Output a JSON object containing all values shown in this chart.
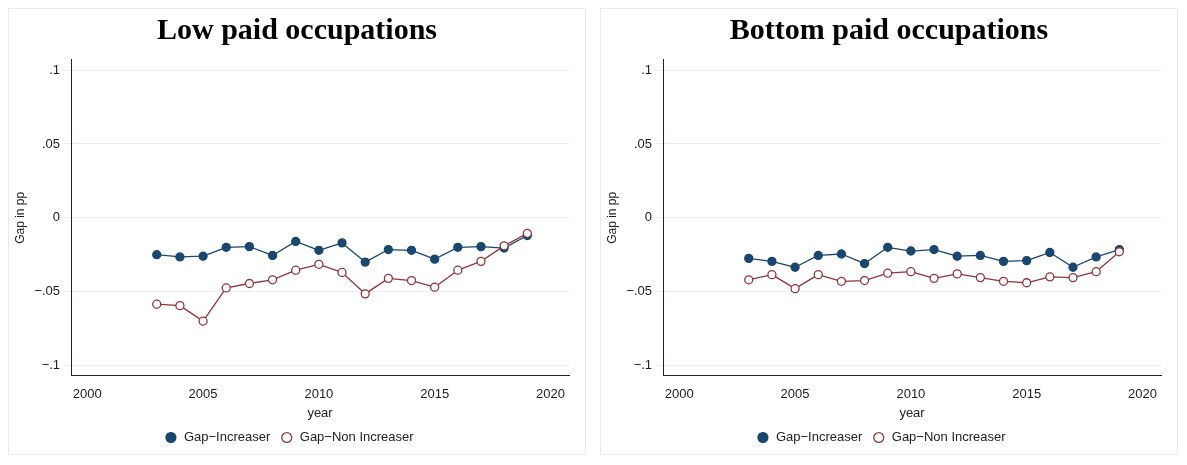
{
  "chart_data": [
    {
      "type": "line",
      "title": "Low paid occupations",
      "xlabel": "year",
      "ylabel": "Gap in pp",
      "x": [
        2003,
        2004,
        2005,
        2006,
        2007,
        2008,
        2009,
        2010,
        2011,
        2012,
        2013,
        2014,
        2015,
        2016,
        2017,
        2018,
        2019
      ],
      "series": [
        {
          "name": "Gap−Increaser",
          "color": "#1a476f",
          "values": [
            -0.025,
            -0.0265,
            -0.026,
            -0.02,
            -0.0195,
            -0.0255,
            -0.016,
            -0.022,
            -0.017,
            -0.03,
            -0.0215,
            -0.022,
            -0.028,
            -0.02,
            -0.0195,
            -0.0205,
            -0.012
          ]
        },
        {
          "name": "Gap−Non Increaser",
          "color": "#90353b",
          "values": [
            -0.0585,
            -0.0595,
            -0.07,
            -0.0475,
            -0.0445,
            -0.042,
            -0.0355,
            -0.0315,
            -0.037,
            -0.0515,
            -0.041,
            -0.0425,
            -0.047,
            -0.0355,
            -0.0295,
            -0.019,
            -0.0105
          ]
        }
      ],
      "xlim": [
        1999.3,
        2020.8
      ],
      "xticks": [
        2000,
        2005,
        2010,
        2015,
        2020
      ],
      "ylim": [
        -0.107,
        0.107
      ],
      "yticks": [
        {
          "value": -0.1,
          "label": "−.1"
        },
        {
          "value": -0.05,
          "label": "−.05"
        },
        0,
        {
          "value": 0.05,
          "label": ".05"
        },
        {
          "value": 0.1,
          "label": ".1"
        }
      ],
      "grid": "y",
      "legend": "bottom",
      "marker": "circle",
      "line_style": "solid"
    },
    {
      "type": "line",
      "title": "Bottom paid occupations",
      "xlabel": "year",
      "ylabel": "Gap in pp",
      "x": [
        2003,
        2004,
        2005,
        2006,
        2007,
        2008,
        2009,
        2010,
        2011,
        2012,
        2013,
        2014,
        2015,
        2016,
        2017,
        2018,
        2019
      ],
      "series": [
        {
          "name": "Gap−Increaser",
          "color": "#1a476f",
          "values": [
            -0.0275,
            -0.0295,
            -0.0335,
            -0.0255,
            -0.0245,
            -0.031,
            -0.02,
            -0.0225,
            -0.0215,
            -0.026,
            -0.0255,
            -0.0295,
            -0.029,
            -0.0235,
            -0.0335,
            -0.0265,
            -0.0215
          ]
        },
        {
          "name": "Gap−Non Increaser",
          "color": "#90353b",
          "values": [
            -0.042,
            -0.0385,
            -0.048,
            -0.0385,
            -0.043,
            -0.0425,
            -0.0375,
            -0.0365,
            -0.041,
            -0.038,
            -0.0405,
            -0.043,
            -0.044,
            -0.04,
            -0.0405,
            -0.0365,
            -0.023
          ]
        }
      ],
      "xlim": [
        1999.3,
        2020.8
      ],
      "xticks": [
        2000,
        2005,
        2010,
        2015,
        2020
      ],
      "ylim": [
        -0.107,
        0.107
      ],
      "yticks": [
        {
          "value": -0.1,
          "label": "−.1"
        },
        {
          "value": -0.05,
          "label": "−.05"
        },
        0,
        {
          "value": 0.05,
          "label": ".05"
        },
        {
          "value": 0.1,
          "label": ".1"
        }
      ],
      "grid": "y",
      "legend": "bottom",
      "marker": "circle",
      "line_style": "solid"
    }
  ]
}
